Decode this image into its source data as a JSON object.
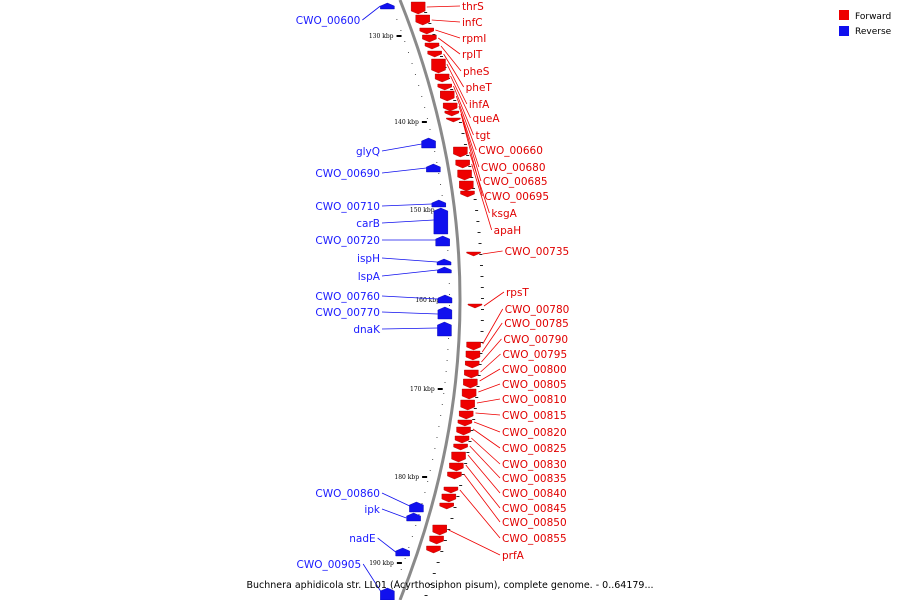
{
  "caption": "Buchnera aphidicola str. LL01 (Acyrthosiphon pisum), complete genome. - 0..64179...",
  "legend": [
    {
      "label": "Forward",
      "color": "#ee0000"
    },
    {
      "label": "Reverse",
      "color": "#1010ee"
    }
  ],
  "scale_ticks": [
    "130 kbp",
    "140 kbp",
    "150 kbp",
    "160 kbp",
    "170 kbp",
    "180 kbp",
    "190 kbp"
  ],
  "forward_genes": [
    "thrS",
    "infC",
    "rpmI",
    "rplT",
    "pheS",
    "pheT",
    "ihfA",
    "queA",
    "tgt",
    "CWO_00660",
    "CWO_00680",
    "CWO_00685",
    "CWO_00695",
    "ksgA",
    "apaH",
    "CWO_00735",
    "rpsT",
    "CWO_00780",
    "CWO_00785",
    "CWO_00790",
    "CWO_00795",
    "CWO_00800",
    "CWO_00805",
    "CWO_00810",
    "CWO_00815",
    "CWO_00820",
    "CWO_00825",
    "CWO_00830",
    "CWO_00835",
    "CWO_00840",
    "CWO_00845",
    "CWO_00850",
    "CWO_00855",
    "prfA"
  ],
  "reverse_genes": [
    "CWO_00600",
    "glyQ",
    "CWO_00690",
    "CWO_00710",
    "carB",
    "CWO_00720",
    "ispH",
    "lspA",
    "CWO_00760",
    "CWO_00770",
    "dnaK",
    "CWO_00860",
    "ipk",
    "nadE",
    "CWO_00905"
  ]
}
